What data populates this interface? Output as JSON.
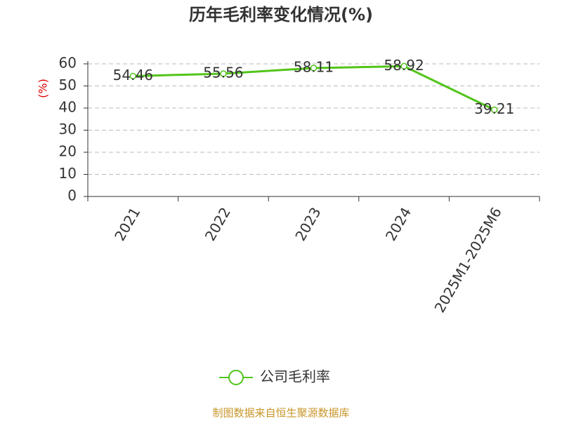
{
  "chart_data": {
    "type": "line",
    "title": "历年毛利率变化情况(%)",
    "y_label": "(%)",
    "categories": [
      "2021",
      "2022",
      "2023",
      "2024",
      "2025M1-2025M6"
    ],
    "series": [
      {
        "name": "公司毛利率",
        "color": "#52c41a",
        "values": [
          54.46,
          55.56,
          58.11,
          58.92,
          39.21
        ]
      }
    ],
    "ylim": [
      0,
      60
    ],
    "yticks": [
      0,
      10,
      20,
      30,
      40,
      50,
      60
    ],
    "grid": true,
    "source": "制图数据来自恒生聚源数据库"
  }
}
